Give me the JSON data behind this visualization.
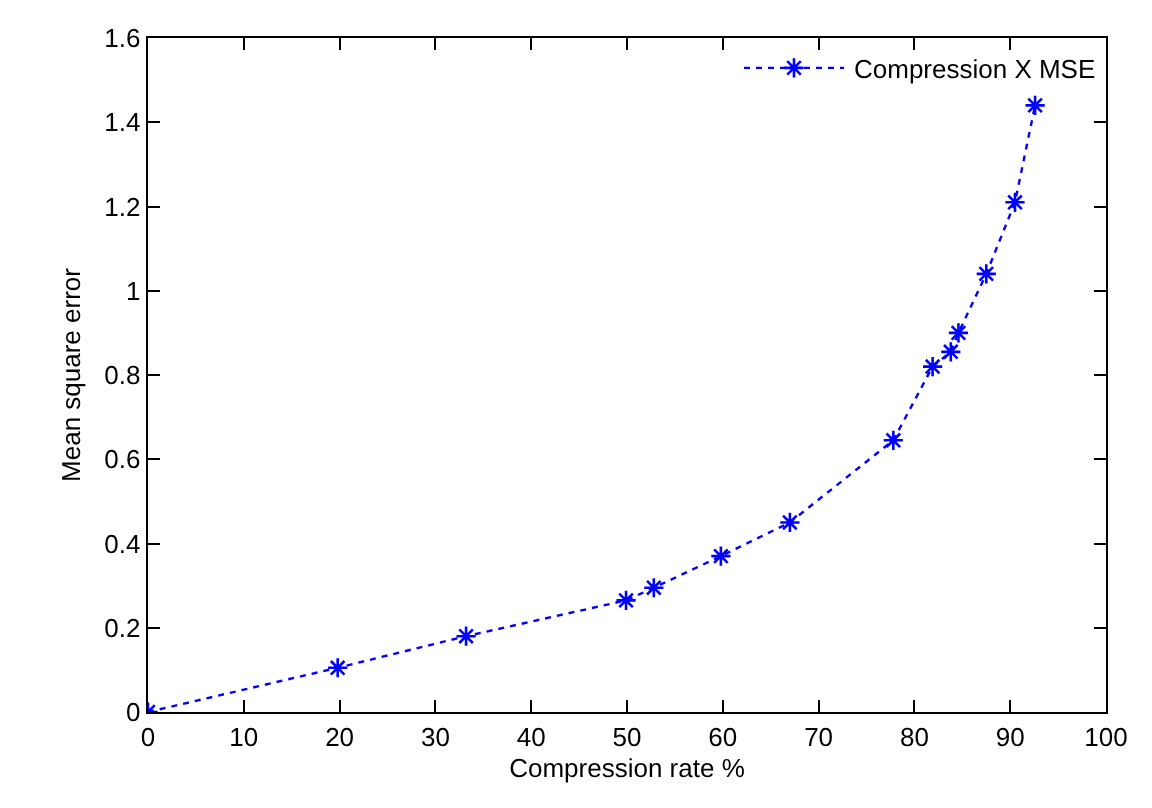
{
  "chart_data": {
    "type": "line",
    "xlabel": "Compression rate %",
    "ylabel": "Mean square error",
    "series": [
      {
        "name": "Compression X MSE",
        "color": "#0000ff",
        "x": [
          0,
          19.8,
          33.2,
          49.9,
          52.8,
          59.8,
          67,
          77.8,
          81.9,
          83.8,
          84.6,
          87.5,
          90.5,
          92.6
        ],
        "values": [
          0,
          0.105,
          0.18,
          0.265,
          0.295,
          0.37,
          0.45,
          0.645,
          0.82,
          0.855,
          0.9,
          1.04,
          1.21,
          1.44
        ]
      }
    ],
    "xlim": [
      0,
      100
    ],
    "xticks": [
      0,
      10,
      20,
      30,
      40,
      50,
      60,
      70,
      80,
      90,
      100
    ],
    "ylim": [
      0,
      1.6
    ],
    "yticks": [
      0,
      0.2,
      0.4,
      0.6,
      0.8,
      1,
      1.2,
      1.4,
      1.6
    ],
    "legend": "top right",
    "marker": "cross",
    "line_style": "dotted"
  }
}
